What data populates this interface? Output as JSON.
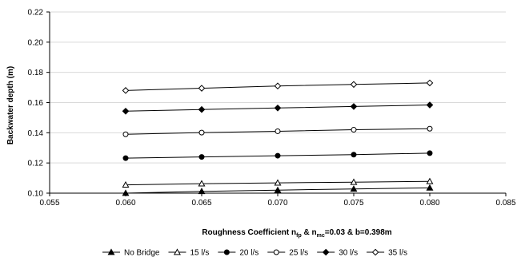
{
  "chart_data": {
    "type": "line",
    "xlabel": {
      "main": "Roughness Coefficient n",
      "sub1": "fp",
      "mid": " & n",
      "sub2": "mc",
      "tail": "=0.03 & b=0.398m"
    },
    "ylabel": "Backwater depth (m)",
    "xlim": [
      0.055,
      0.085
    ],
    "ylim": [
      0.1,
      0.22
    ],
    "x_ticks": [
      "0.055",
      "0.060",
      "0.065",
      "0.070",
      "0.075",
      "0.080",
      "0.085"
    ],
    "y_ticks": [
      "0.10",
      "0.12",
      "0.14",
      "0.16",
      "0.18",
      "0.20",
      "0.22"
    ],
    "x": [
      0.06,
      0.065,
      0.07,
      0.075,
      0.08
    ],
    "grid": "horizontal",
    "legend_position": "bottom",
    "series": [
      {
        "name": "No Bridge",
        "marker": "triangle-filled",
        "values": [
          0.1,
          0.1012,
          0.102,
          0.1028,
          0.1035
        ]
      },
      {
        "name": "15 l/s",
        "marker": "triangle-open",
        "values": [
          0.1055,
          0.1063,
          0.1068,
          0.1073,
          0.1078
        ]
      },
      {
        "name": "20 l/s",
        "marker": "circle-filled",
        "values": [
          0.1232,
          0.124,
          0.1248,
          0.1255,
          0.1265
        ]
      },
      {
        "name": "25 l/s",
        "marker": "circle-open",
        "values": [
          0.139,
          0.1401,
          0.141,
          0.142,
          0.1427
        ]
      },
      {
        "name": "30 l/s",
        "marker": "diamond-filled",
        "values": [
          0.1543,
          0.1554,
          0.1564,
          0.1574,
          0.1584
        ]
      },
      {
        "name": "35 l/s",
        "marker": "diamond-open",
        "values": [
          0.168,
          0.1695,
          0.171,
          0.172,
          0.173
        ]
      }
    ]
  }
}
